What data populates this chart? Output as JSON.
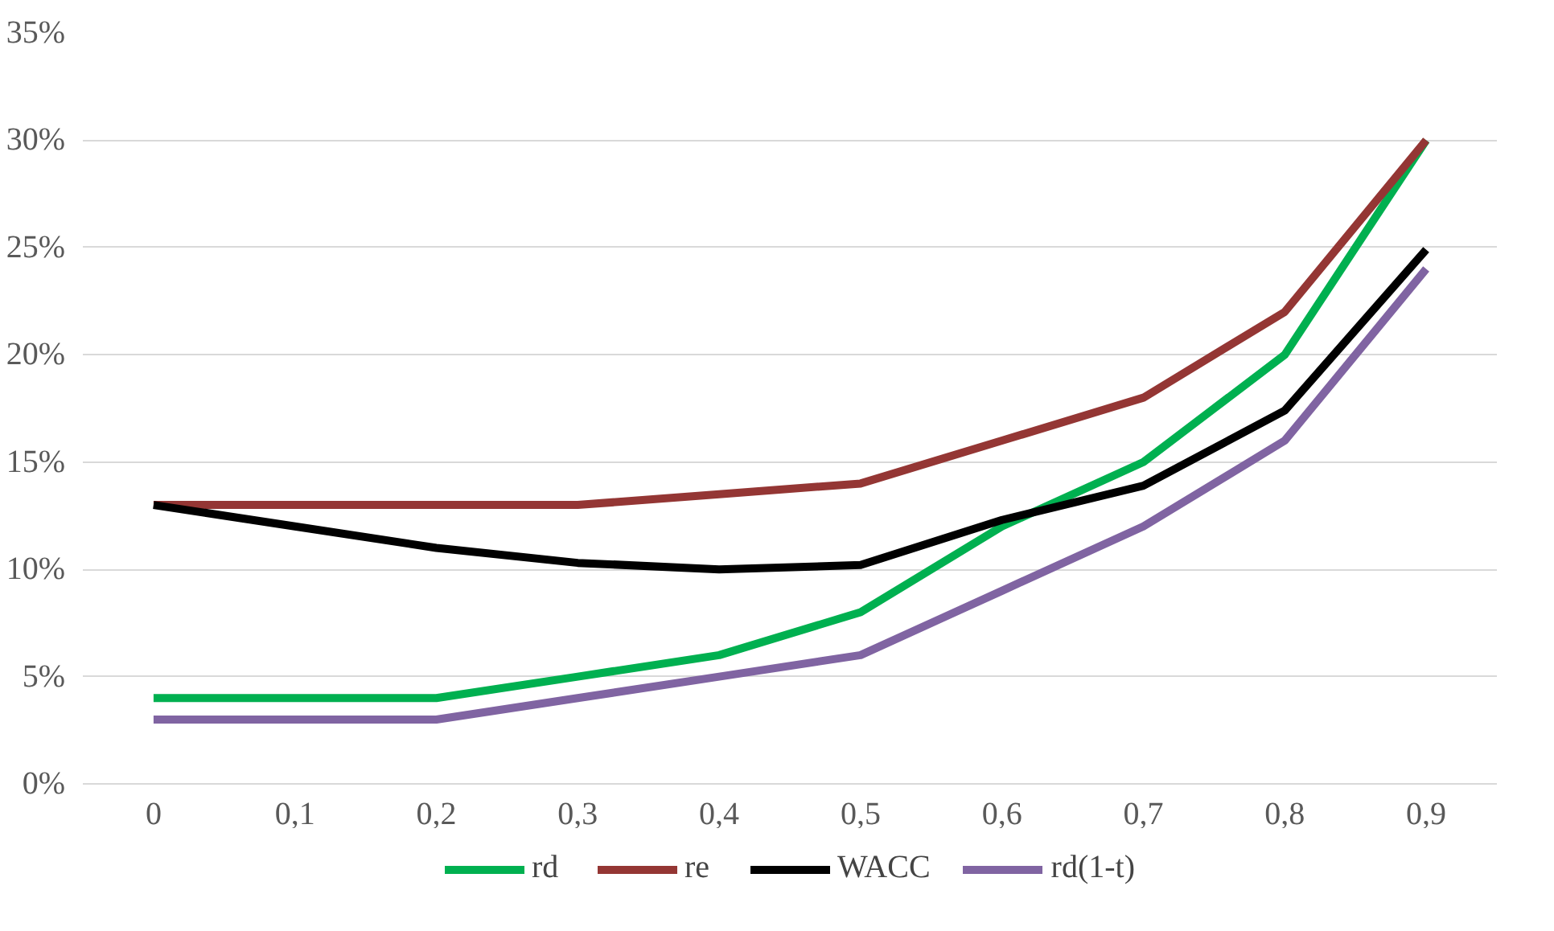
{
  "chart_data": {
    "type": "line",
    "categories": [
      "0",
      "0,1",
      "0,2",
      "0,3",
      "0,4",
      "0,5",
      "0,6",
      "0,7",
      "0,8",
      "0,9"
    ],
    "series": [
      {
        "name": "rd",
        "color": "#00b050",
        "values": [
          4,
          4,
          4,
          5,
          6,
          8,
          12,
          15,
          20,
          30
        ]
      },
      {
        "name": "re",
        "color": "#943634",
        "values": [
          13,
          13,
          13,
          13,
          13.5,
          14,
          16,
          18,
          22,
          30
        ]
      },
      {
        "name": "WACC",
        "color": "#000000",
        "values": [
          13,
          12,
          11,
          10.3,
          10,
          10.2,
          12.3,
          13.9,
          17.4,
          24.9
        ]
      },
      {
        "name": "rd(1-t)",
        "color": "#8064a2",
        "values": [
          3,
          3,
          3,
          4,
          5,
          6,
          9,
          12,
          16,
          24
        ]
      }
    ],
    "ylim": [
      0,
      35
    ],
    "yticks": [
      {
        "value": 0,
        "label": "0%"
      },
      {
        "value": 5,
        "label": "5%"
      },
      {
        "value": 10,
        "label": "10%"
      },
      {
        "value": 15,
        "label": "15%"
      },
      {
        "value": 20,
        "label": "20%"
      },
      {
        "value": 25,
        "label": "25%"
      },
      {
        "value": 30,
        "label": "30%"
      },
      {
        "value": 35,
        "label": "35%"
      }
    ],
    "grid": "y",
    "legend": "bottom",
    "marker": "none",
    "line_style": "solid"
  }
}
